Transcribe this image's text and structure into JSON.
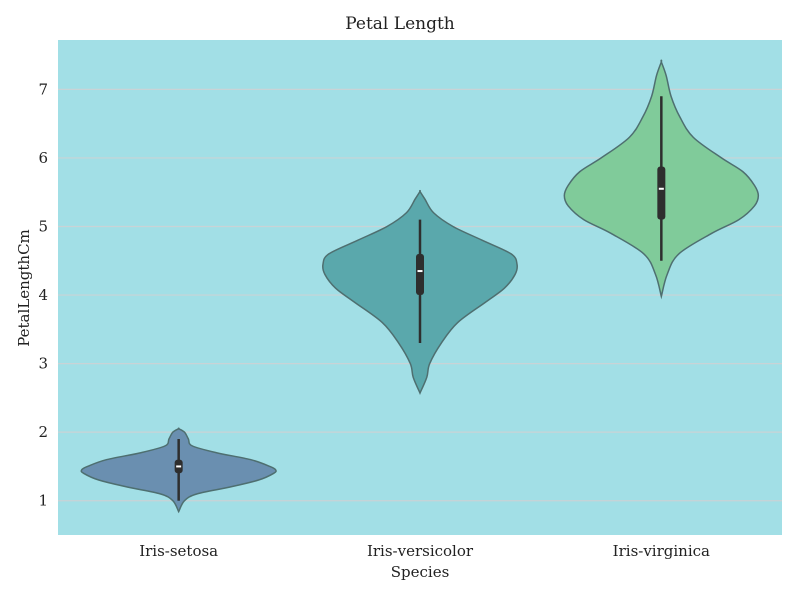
{
  "chart_data": {
    "type": "violin",
    "title": "Petal Length",
    "xlabel": "Species",
    "ylabel": "PetalLengthCm",
    "ylim": [
      0.5,
      7.72
    ],
    "yticks": [
      1,
      2,
      3,
      4,
      5,
      6,
      7
    ],
    "grid": "y",
    "background": "#a2dfe6",
    "categories": [
      "Iris-setosa",
      "Iris-versicolor",
      "Iris-virginica"
    ],
    "series": [
      {
        "color": "#6a8fb0",
        "min": 1.0,
        "q1": 1.4,
        "median": 1.5,
        "q3": 1.6,
        "max": 1.9,
        "whisker_low": 1.0,
        "whisker_high": 1.9,
        "profile": [
          [
            0.84,
            0.0
          ],
          [
            1.0,
            0.06
          ],
          [
            1.1,
            0.19
          ],
          [
            1.2,
            0.53
          ],
          [
            1.3,
            0.82
          ],
          [
            1.4,
            0.98
          ],
          [
            1.45,
            1.0
          ],
          [
            1.5,
            0.94
          ],
          [
            1.6,
            0.74
          ],
          [
            1.7,
            0.39
          ],
          [
            1.8,
            0.14
          ],
          [
            1.9,
            0.1
          ],
          [
            2.0,
            0.06
          ],
          [
            2.05,
            0.0
          ]
        ]
      },
      {
        "color": "#5aa8ac",
        "min": 3.0,
        "q1": 4.0,
        "median": 4.35,
        "q3": 4.6,
        "max": 5.1,
        "whisker_low": 3.3,
        "whisker_high": 5.1,
        "profile": [
          [
            2.57,
            0.0
          ],
          [
            2.8,
            0.07
          ],
          [
            3.0,
            0.1
          ],
          [
            3.3,
            0.22
          ],
          [
            3.6,
            0.39
          ],
          [
            3.9,
            0.68
          ],
          [
            4.1,
            0.87
          ],
          [
            4.3,
            0.98
          ],
          [
            4.45,
            1.0
          ],
          [
            4.6,
            0.94
          ],
          [
            4.8,
            0.64
          ],
          [
            5.0,
            0.34
          ],
          [
            5.2,
            0.14
          ],
          [
            5.4,
            0.05
          ],
          [
            5.51,
            0.0
          ]
        ]
      },
      {
        "color": "#80cb9a",
        "min": 4.5,
        "q1": 5.1,
        "median": 5.55,
        "q3": 5.875,
        "max": 6.9,
        "whisker_low": 4.5,
        "whisker_high": 6.9,
        "profile": [
          [
            3.98,
            0.0
          ],
          [
            4.3,
            0.06
          ],
          [
            4.6,
            0.18
          ],
          [
            4.9,
            0.52
          ],
          [
            5.1,
            0.8
          ],
          [
            5.3,
            0.96
          ],
          [
            5.45,
            1.0
          ],
          [
            5.6,
            0.96
          ],
          [
            5.8,
            0.84
          ],
          [
            6.0,
            0.62
          ],
          [
            6.3,
            0.33
          ],
          [
            6.6,
            0.19
          ],
          [
            6.9,
            0.1
          ],
          [
            7.2,
            0.05
          ],
          [
            7.4,
            0.0
          ]
        ]
      }
    ]
  }
}
